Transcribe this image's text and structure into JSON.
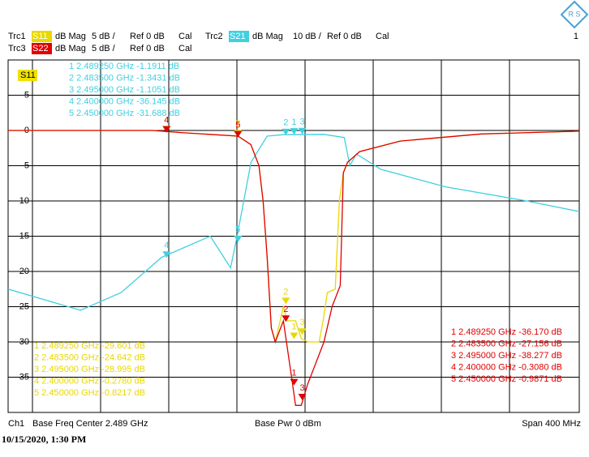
{
  "chart_data": {
    "type": "line",
    "title": "S11",
    "xlim": [
      2.289,
      2.689
    ],
    "ylim": [
      -40,
      10
    ],
    "y2lim": [
      -80,
      20
    ],
    "yticks": [
      5,
      0,
      -5,
      -10,
      -15,
      -20,
      -25,
      -30,
      -35
    ],
    "grid": true,
    "channel": "Ch1",
    "center": "Base Freq Center 2.489 GHz",
    "power": "Base Pwr  0 dBm",
    "span": "Span  400 MHz",
    "timestamp": "10/15/2020, 1:30 PM",
    "window": "1",
    "series": [
      {
        "name": "S11",
        "trace": "Trc1",
        "format": "dB Mag",
        "scale": "5 dB /",
        "ref": "Ref 0 dB",
        "cal": "Cal",
        "color": "#e8d800",
        "x": [
          2.289,
          2.39,
          2.41,
          2.45,
          2.459,
          2.4647,
          2.4676,
          2.4704,
          2.4733,
          2.4761,
          2.4818,
          2.4846,
          2.4903,
          2.4943,
          2.4988,
          2.5068,
          2.5096,
          2.5125,
          2.5181,
          2.521,
          2.5238,
          2.5267,
          2.5352,
          2.5636,
          2.6204,
          2.689
        ],
        "values": [
          0,
          0,
          -0.3,
          -0.8,
          -2,
          -5,
          -10,
          -18,
          -28,
          -30,
          -25,
          -27,
          -27,
          -29.5,
          -30,
          -30,
          -27,
          -23,
          -22.5,
          -10,
          -6,
          -4.5,
          -3,
          -1.5,
          -0.5,
          -0.1
        ],
        "markers": [
          {
            "label": "1",
            "x": 2.48925,
            "value": -29.601,
            "row": "1 2.489250 GHz -29.601 dB"
          },
          {
            "label": "2",
            "x": 2.4835,
            "value": -24.642,
            "row": "2 2.483500 GHz -24.642 dB"
          },
          {
            "label": "3",
            "x": 2.495,
            "value": -28.995,
            "row": "3 2.495000 GHz -28.995 dB"
          },
          {
            "label": "4",
            "x": 2.4,
            "value": -0.278,
            "row": "4 2.400000 GHz -0.2780 dB"
          },
          {
            "label": "5",
            "x": 2.45,
            "value": -0.8217,
            "row": "5 2.450000 GHz -0.8217 dB"
          }
        ]
      },
      {
        "name": "S21",
        "trace": "Trc2",
        "format": "dB Mag",
        "scale": "10 dB /",
        "ref": "Ref 0 dB",
        "cal": "Cal",
        "color": "#40d0e0",
        "axis": "y2",
        "x": [
          2.289,
          2.3397,
          2.3681,
          2.3965,
          2.4306,
          2.4448,
          2.4494,
          2.4591,
          2.4704,
          2.4818,
          2.5102,
          2.5244,
          2.5284,
          2.5329,
          2.5499,
          2.5954,
          2.6522,
          2.689
        ],
        "values": [
          -45,
          -51,
          -46,
          -36,
          -30,
          -39,
          -30,
          -9,
          -1.6,
          -1.2,
          -1.1,
          -2,
          -10,
          -6.7,
          -11,
          -16,
          -20,
          -23
        ],
        "markers": [
          {
            "label": "1",
            "x": 2.48925,
            "value": -1.1911,
            "row": "1 2.489250 GHz -1.1911 dB"
          },
          {
            "label": "2",
            "x": 2.4835,
            "value": -1.3431,
            "row": "2 2.483500 GHz -1.3431 dB"
          },
          {
            "label": "3",
            "x": 2.495,
            "value": -1.1051,
            "row": "3 2.495000 GHz -1.1051 dB"
          },
          {
            "label": "4",
            "x": 2.4,
            "value": -36.145,
            "row": "4 2.400000 GHz -36.145 dB"
          },
          {
            "label": "5",
            "x": 2.45,
            "value": -31.688,
            "row": "5 2.450000 GHz -31.688 dB"
          }
        ]
      },
      {
        "name": "S22",
        "trace": "Trc3",
        "format": "dB Mag",
        "scale": "5 dB /",
        "ref": "Ref 0 dB",
        "cal": "Cal",
        "color": "#e00000",
        "x": [
          2.289,
          2.39,
          2.41,
          2.45,
          2.459,
          2.4647,
          2.4676,
          2.4704,
          2.4733,
          2.4761,
          2.4818,
          2.4875,
          2.4903,
          2.4943,
          2.4988,
          2.5045,
          2.5102,
          2.5159,
          2.5216,
          2.5238,
          2.5267,
          2.5352,
          2.5636,
          2.6204,
          2.689
        ],
        "values": [
          0,
          0,
          -0.3,
          -0.8,
          -2,
          -5,
          -10,
          -18,
          -28,
          -30,
          -27,
          -35,
          -39,
          -39,
          -36,
          -33,
          -30,
          -25,
          -22,
          -6,
          -4.5,
          -3,
          -1.5,
          -0.5,
          -0.1
        ],
        "markers": [
          {
            "label": "1",
            "x": 2.48925,
            "value": -36.17,
            "row": "1 2.489250 GHz -36.170 dB"
          },
          {
            "label": "2",
            "x": 2.4835,
            "value": -27.156,
            "row": "2 2.483500 GHz -27.156 dB"
          },
          {
            "label": "3",
            "x": 2.495,
            "value": -38.277,
            "row": "3 2.495000 GHz -38.277 dB"
          },
          {
            "label": "4",
            "x": 2.4,
            "value": -0.308,
            "row": "4 2.400000 GHz -0.3080 dB"
          },
          {
            "label": "5",
            "x": 2.45,
            "value": -0.9871,
            "row": "5 2.450000 GHz -0.9871 dB"
          }
        ]
      }
    ]
  }
}
